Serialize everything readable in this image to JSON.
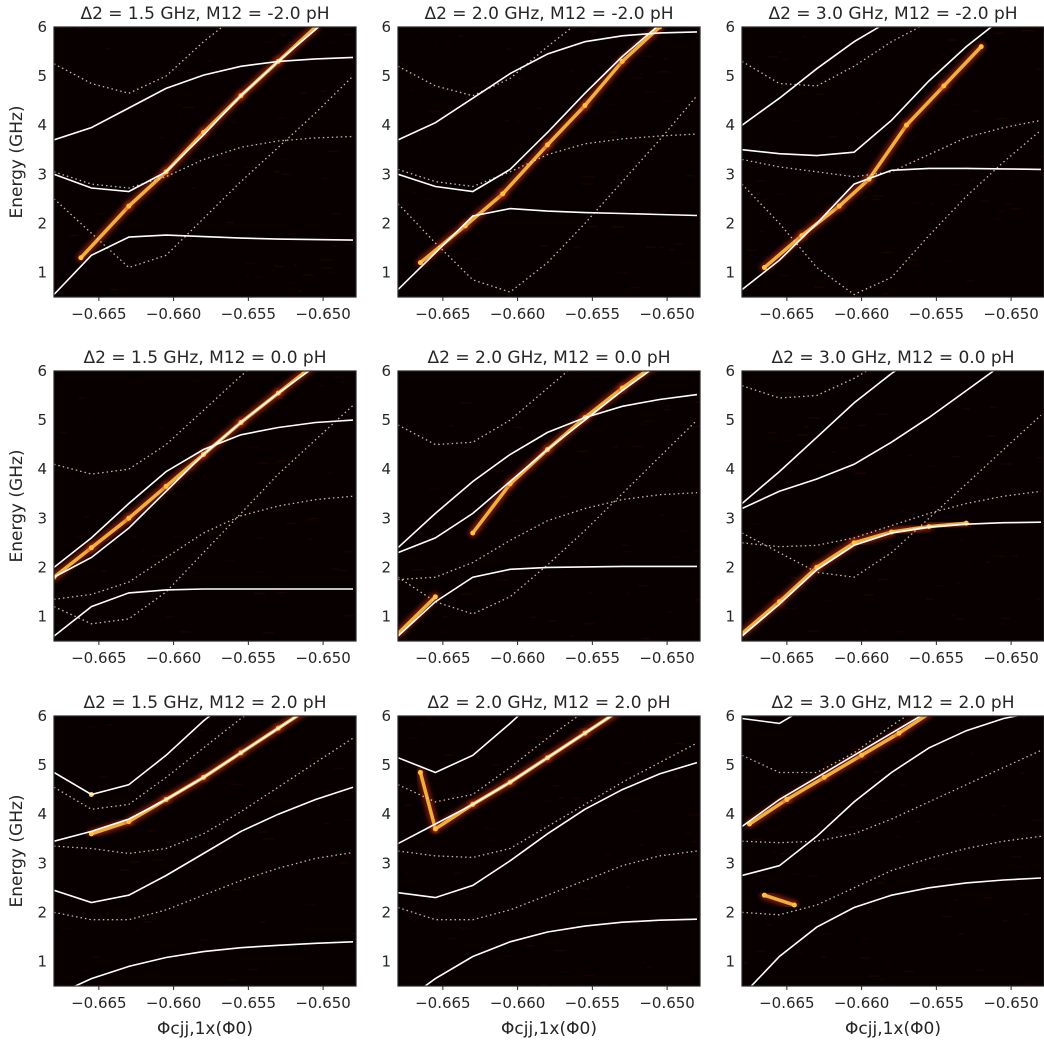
{
  "figure": {
    "ylabel": "Energy (GHz)",
    "xlabel": "Φcjj,1x(Φ0)",
    "xticks": [
      -0.665,
      -0.66,
      -0.655,
      -0.65
    ],
    "xtick_labels": [
      "−0.665",
      "−0.660",
      "−0.655",
      "−0.650"
    ],
    "yticks": [
      1,
      2,
      3,
      4,
      5,
      6
    ],
    "ytick_labels": [
      "1",
      "2",
      "3",
      "4",
      "5",
      "6"
    ],
    "colors": {
      "background": "#080000",
      "theory": "#ffffff",
      "data_hot": "#ffc040",
      "data_mid": "#c8321e"
    }
  },
  "chart_data": [
    {
      "type": "heatmap",
      "title": "Δ2 = 1.5 GHz,  M12 = -2.0 pH",
      "xlim": [
        -0.668,
        -0.6478
      ],
      "ylim": [
        0.5,
        6
      ],
      "x": [
        -0.668,
        -0.6655,
        -0.663,
        -0.6605,
        -0.658,
        -0.6555,
        -0.653,
        -0.6505,
        -0.648
      ],
      "solid": [
        [
          0.55,
          1.35,
          1.72,
          1.76,
          1.73,
          1.7,
          1.68,
          1.67,
          1.66
        ],
        [
          3.0,
          2.72,
          2.65,
          3.05,
          3.8,
          4.6,
          5.3,
          5.95,
          6.6
        ],
        [
          3.7,
          3.95,
          4.35,
          4.75,
          5.02,
          5.2,
          5.3,
          5.35,
          5.38
        ]
      ],
      "dotted": [
        [
          2.5,
          1.8,
          1.1,
          1.35,
          2.1,
          2.85,
          3.55,
          4.25,
          5.0
        ],
        [
          3.05,
          2.8,
          2.72,
          2.95,
          3.3,
          3.55,
          3.68,
          3.74,
          3.77
        ],
        [
          5.25,
          4.85,
          4.65,
          5.0,
          5.7,
          6.3,
          6.8,
          7.2,
          7.6
        ]
      ],
      "bright": [
        [
          -0.6662,
          1.3
        ],
        [
          -0.663,
          2.35
        ],
        [
          -0.6605,
          3.05
        ],
        [
          -0.658,
          3.85
        ],
        [
          -0.6555,
          4.6
        ],
        [
          -0.653,
          5.3
        ],
        [
          -0.6505,
          6.0
        ]
      ]
    },
    {
      "type": "heatmap",
      "title": "Δ2 = 2.0 GHz,  M12 = -2.0 pH",
      "xlim": [
        -0.668,
        -0.6478
      ],
      "ylim": [
        0.5,
        6
      ],
      "x": [
        -0.668,
        -0.6655,
        -0.663,
        -0.6605,
        -0.658,
        -0.6555,
        -0.653,
        -0.6505,
        -0.648
      ],
      "solid": [
        [
          0.65,
          1.4,
          2.15,
          2.3,
          2.25,
          2.22,
          2.2,
          2.18,
          2.16
        ],
        [
          3.0,
          2.75,
          2.65,
          3.1,
          3.85,
          4.65,
          5.4,
          6.05,
          6.7
        ],
        [
          3.7,
          4.05,
          4.55,
          5.05,
          5.45,
          5.7,
          5.82,
          5.88,
          5.9
        ]
      ],
      "dotted": [
        [
          2.4,
          1.6,
          0.85,
          0.6,
          1.2,
          2.0,
          2.85,
          3.7,
          4.6
        ],
        [
          3.1,
          2.85,
          2.75,
          3.05,
          3.4,
          3.62,
          3.72,
          3.78,
          3.82
        ],
        [
          5.2,
          4.8,
          4.6,
          4.95,
          5.6,
          6.2,
          6.7,
          7.1,
          7.5
        ]
      ],
      "bright": [
        [
          -0.6665,
          1.2
        ],
        [
          -0.6635,
          1.95
        ],
        [
          -0.661,
          2.6
        ],
        [
          -0.658,
          3.6
        ],
        [
          -0.6555,
          4.4
        ],
        [
          -0.653,
          5.3
        ],
        [
          -0.6505,
          6.0
        ]
      ]
    },
    {
      "type": "heatmap",
      "title": "Δ2 = 3.0 GHz,  M12 = -2.0 pH",
      "xlim": [
        -0.668,
        -0.6478
      ],
      "ylim": [
        0.5,
        6
      ],
      "x": [
        -0.668,
        -0.6655,
        -0.663,
        -0.6605,
        -0.658,
        -0.6555,
        -0.653,
        -0.6505,
        -0.648
      ],
      "solid": [
        [
          0.65,
          1.25,
          2.0,
          2.8,
          3.08,
          3.12,
          3.12,
          3.11,
          3.1
        ],
        [
          3.5,
          3.42,
          3.38,
          3.45,
          4.1,
          4.9,
          5.6,
          6.2,
          6.7
        ],
        [
          4.0,
          4.55,
          5.15,
          5.7,
          6.15,
          6.5,
          6.8,
          7.0,
          7.2
        ]
      ],
      "dotted": [
        [
          2.8,
          2.0,
          1.1,
          0.55,
          0.9,
          1.75,
          2.55,
          3.25,
          3.9
        ],
        [
          3.3,
          3.15,
          3.05,
          2.95,
          3.05,
          3.4,
          3.75,
          3.95,
          4.1
        ],
        [
          5.3,
          4.85,
          4.8,
          5.2,
          5.7,
          6.1,
          6.4,
          6.7,
          7.0
        ]
      ],
      "bright": [
        [
          -0.6665,
          1.1
        ],
        [
          -0.664,
          1.75
        ],
        [
          -0.6615,
          2.35
        ],
        [
          -0.6595,
          2.9
        ],
        [
          -0.657,
          4.0
        ],
        [
          -0.6545,
          4.8
        ],
        [
          -0.652,
          5.6
        ]
      ]
    },
    {
      "type": "heatmap",
      "title": "Δ2 = 1.5 GHz,  M12 = 0.0 pH",
      "xlim": [
        -0.668,
        -0.6478
      ],
      "ylim": [
        0.5,
        6
      ],
      "x": [
        -0.668,
        -0.6655,
        -0.663,
        -0.6605,
        -0.658,
        -0.6555,
        -0.653,
        -0.6505,
        -0.648
      ],
      "solid": [
        [
          0.6,
          1.2,
          1.48,
          1.54,
          1.56,
          1.56,
          1.56,
          1.56,
          1.56
        ],
        [
          1.8,
          2.2,
          2.8,
          3.55,
          4.3,
          4.95,
          5.55,
          6.1,
          6.6
        ],
        [
          2.0,
          2.6,
          3.3,
          3.95,
          4.4,
          4.7,
          4.85,
          4.95,
          5.0
        ]
      ],
      "dotted": [
        [
          1.2,
          0.85,
          0.95,
          1.5,
          2.3,
          3.1,
          3.9,
          4.6,
          5.3
        ],
        [
          1.35,
          1.45,
          1.7,
          2.2,
          2.7,
          3.05,
          3.25,
          3.38,
          3.45
        ],
        [
          4.1,
          3.9,
          4.0,
          4.5,
          5.2,
          5.9,
          6.5,
          7.0,
          7.4
        ]
      ],
      "bright": [
        [
          -0.668,
          1.8
        ],
        [
          -0.6655,
          2.4
        ],
        [
          -0.663,
          3.0
        ],
        [
          -0.6605,
          3.65
        ],
        [
          -0.658,
          4.3
        ],
        [
          -0.6555,
          4.95
        ],
        [
          -0.653,
          5.55
        ],
        [
          -0.6505,
          6.15
        ]
      ]
    },
    {
      "type": "heatmap",
      "title": "Δ2 = 2.0 GHz,  M12 = 0.0 pH",
      "xlim": [
        -0.668,
        -0.6478
      ],
      "ylim": [
        0.5,
        6
      ],
      "x": [
        -0.668,
        -0.6655,
        -0.663,
        -0.6605,
        -0.658,
        -0.6555,
        -0.653,
        -0.6505,
        -0.648
      ],
      "solid": [
        [
          0.6,
          1.3,
          1.8,
          1.96,
          2.0,
          2.01,
          2.02,
          2.02,
          2.02
        ],
        [
          2.3,
          2.6,
          3.1,
          3.75,
          4.4,
          5.0,
          5.6,
          6.15,
          6.65
        ],
        [
          2.4,
          3.1,
          3.75,
          4.3,
          4.75,
          5.05,
          5.28,
          5.42,
          5.52
        ]
      ],
      "dotted": [
        [
          1.8,
          1.3,
          1.05,
          1.4,
          2.05,
          2.75,
          3.5,
          4.25,
          5.0
        ],
        [
          1.75,
          1.8,
          2.1,
          2.55,
          2.95,
          3.2,
          3.38,
          3.48,
          3.52
        ],
        [
          4.9,
          4.5,
          4.55,
          5.0,
          5.65,
          6.3,
          6.8,
          7.2,
          7.6
        ]
      ],
      "bright": [
        [
          -0.668,
          0.65
        ],
        [
          -0.6655,
          1.4
        ],
        [
          -0.663,
          2.7
        ],
        [
          -0.6605,
          3.7
        ],
        [
          -0.658,
          4.4
        ],
        [
          -0.6555,
          5.05
        ],
        [
          -0.653,
          5.65
        ],
        [
          -0.6505,
          6.2
        ]
      ]
    },
    {
      "type": "heatmap",
      "title": "Δ2 = 3.0 GHz,  M12 = 0.0 pH",
      "xlim": [
        -0.668,
        -0.6478
      ],
      "ylim": [
        0.5,
        6
      ],
      "x": [
        -0.668,
        -0.6655,
        -0.663,
        -0.6605,
        -0.658,
        -0.6555,
        -0.653,
        -0.6505,
        -0.648
      ],
      "solid": [
        [
          0.6,
          1.25,
          1.95,
          2.45,
          2.7,
          2.82,
          2.88,
          2.91,
          2.92
        ],
        [
          3.2,
          3.55,
          3.8,
          4.1,
          4.55,
          5.05,
          5.6,
          6.15,
          6.7
        ],
        [
          3.3,
          3.95,
          4.65,
          5.35,
          5.95,
          6.45,
          6.85,
          7.2,
          7.5
        ]
      ],
      "dotted": [
        [
          2.7,
          2.3,
          1.9,
          1.8,
          2.3,
          3.0,
          3.7,
          4.4,
          5.1
        ],
        [
          2.5,
          2.42,
          2.45,
          2.6,
          2.85,
          3.1,
          3.3,
          3.45,
          3.55
        ],
        [
          5.7,
          5.45,
          5.5,
          5.85,
          6.3,
          6.7,
          7.1,
          7.4,
          7.7
        ]
      ],
      "bright": [
        [
          -0.668,
          0.65
        ],
        [
          -0.6655,
          1.3
        ],
        [
          -0.663,
          2.0
        ],
        [
          -0.6605,
          2.5
        ],
        [
          -0.658,
          2.72
        ],
        [
          -0.6555,
          2.83
        ],
        [
          -0.653,
          2.9
        ]
      ]
    },
    {
      "type": "heatmap",
      "title": "Δ2 = 1.5 GHz,  M12 = 2.0 pH",
      "xlim": [
        -0.668,
        -0.6478
      ],
      "ylim": [
        0.5,
        6
      ],
      "x": [
        -0.668,
        -0.6655,
        -0.663,
        -0.6605,
        -0.658,
        -0.6555,
        -0.653,
        -0.6505,
        -0.648
      ],
      "solid": [
        [
          0.3,
          0.65,
          0.9,
          1.08,
          1.2,
          1.28,
          1.33,
          1.37,
          1.4
        ],
        [
          2.45,
          2.2,
          2.35,
          2.75,
          3.2,
          3.65,
          4.0,
          4.3,
          4.55
        ],
        [
          3.45,
          3.65,
          3.9,
          4.3,
          4.75,
          5.25,
          5.75,
          6.25,
          6.7
        ],
        [
          4.85,
          4.4,
          4.6,
          5.2,
          5.9,
          6.5,
          7.0,
          7.4,
          7.8
        ]
      ],
      "dotted": [
        [
          2.0,
          1.85,
          1.85,
          2.05,
          2.35,
          2.65,
          2.9,
          3.1,
          3.22
        ],
        [
          3.35,
          3.3,
          3.2,
          3.3,
          3.6,
          4.05,
          4.55,
          5.05,
          5.55
        ],
        [
          4.55,
          4.1,
          4.2,
          4.75,
          5.35,
          5.95,
          6.5,
          7.0,
          7.4
        ]
      ],
      "bright": [
        [
          -0.6655,
          4.4
        ],
        [
          -0.6655,
          3.6
        ],
        [
          -0.663,
          3.85
        ],
        [
          -0.6605,
          4.3
        ],
        [
          -0.658,
          4.75
        ],
        [
          -0.6555,
          5.25
        ],
        [
          -0.653,
          5.75
        ],
        [
          -0.6505,
          6.25
        ]
      ]
    },
    {
      "type": "heatmap",
      "title": "Δ2 = 2.0 GHz,  M12 = 2.0 pH",
      "xlim": [
        -0.668,
        -0.6478
      ],
      "ylim": [
        0.5,
        6
      ],
      "x": [
        -0.668,
        -0.6655,
        -0.663,
        -0.6605,
        -0.658,
        -0.6555,
        -0.653,
        -0.6505,
        -0.648
      ],
      "solid": [
        [
          0.1,
          0.65,
          1.1,
          1.4,
          1.6,
          1.72,
          1.8,
          1.84,
          1.86
        ],
        [
          2.4,
          2.3,
          2.55,
          3.05,
          3.6,
          4.1,
          4.5,
          4.82,
          5.05
        ],
        [
          3.4,
          3.8,
          4.2,
          4.65,
          5.15,
          5.65,
          6.15,
          6.6,
          7.0
        ],
        [
          5.15,
          4.85,
          5.2,
          5.85,
          6.55,
          7.1,
          7.5,
          7.9,
          8.2
        ]
      ],
      "dotted": [
        [
          2.1,
          1.85,
          1.85,
          2.05,
          2.35,
          2.65,
          2.95,
          3.15,
          3.25
        ],
        [
          3.25,
          3.15,
          3.12,
          3.3,
          3.75,
          4.2,
          4.65,
          5.05,
          5.45
        ],
        [
          4.6,
          4.25,
          4.4,
          4.95,
          5.55,
          6.1,
          6.6,
          7.1,
          7.5
        ]
      ],
      "bright": [
        [
          -0.6665,
          4.85
        ],
        [
          -0.6655,
          3.7
        ],
        [
          -0.663,
          4.2
        ],
        [
          -0.6605,
          4.65
        ],
        [
          -0.658,
          5.15
        ],
        [
          -0.6555,
          5.65
        ],
        [
          -0.653,
          6.15
        ]
      ]
    },
    {
      "type": "heatmap",
      "title": "Δ2 = 3.0 GHz,  M12 = 2.0 pH",
      "xlim": [
        -0.668,
        -0.6478
      ],
      "ylim": [
        0.5,
        6
      ],
      "x": [
        -0.668,
        -0.6655,
        -0.663,
        -0.6605,
        -0.658,
        -0.6555,
        -0.653,
        -0.6505,
        -0.648
      ],
      "solid": [
        [
          0.3,
          1.1,
          1.7,
          2.1,
          2.35,
          2.5,
          2.6,
          2.66,
          2.7
        ],
        [
          2.75,
          2.95,
          3.55,
          4.25,
          4.85,
          5.35,
          5.7,
          5.95,
          6.1
        ],
        [
          3.75,
          4.3,
          4.75,
          5.2,
          5.65,
          6.1,
          6.5,
          6.9,
          7.3
        ],
        [
          5.95,
          5.85,
          6.3,
          6.9,
          7.5,
          8.0,
          8.4,
          8.8,
          9.1
        ]
      ],
      "dotted": [
        [
          2.0,
          1.95,
          2.15,
          2.5,
          2.85,
          3.1,
          3.3,
          3.45,
          3.55
        ],
        [
          3.45,
          3.42,
          3.45,
          3.6,
          3.9,
          4.25,
          4.6,
          4.95,
          5.3
        ],
        [
          5.2,
          4.85,
          4.85,
          5.25,
          5.8,
          6.3,
          6.7,
          7.1,
          7.5
        ]
      ],
      "bright": [
        [
          -0.6675,
          3.8
        ],
        [
          -0.665,
          4.3
        ],
        [
          -0.6625,
          4.75
        ],
        [
          -0.66,
          5.2
        ],
        [
          -0.6575,
          5.65
        ],
        [
          -0.6555,
          6.05
        ],
        [
          -0.6665,
          2.35
        ],
        [
          -0.6645,
          2.15
        ]
      ]
    }
  ]
}
